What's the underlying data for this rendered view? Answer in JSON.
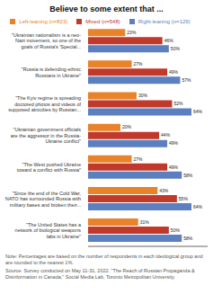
{
  "chart_data": {
    "type": "bar",
    "title": "Believe to some extent that ...",
    "orientation": "horizontal",
    "categories": [
      "\"Ukrainian nationalism is a neo-\nNazi movement, so one of the\ngoals of Russia's 'Special...",
      "\"Russia is defending ethnic\nRussians in Ukraine\"",
      "\"The Kyiv regime is spreading\ndoctored photos and videos of\nsupposed atrocities by Russian...",
      "\"Ukrainian government officials\nare the aggressor in the Russia-\nUkraine conflict\"",
      "\"The West pushed Ukraine\ntoward a conflict with Russia\"",
      "\"Since the end of the Cold War,\nNATO has surrounded Russia with\nmilitary bases and broken their...",
      "\"The United States has a\nnetwork of biological weapons\nlabs in Ukraine\""
    ],
    "series": [
      {
        "name": "Left-leaning (n=823)",
        "color": "#E8832A",
        "values": [
          23,
          27,
          30,
          20,
          27,
          43,
          31
        ],
        "value_labels": [
          "23%",
          "27%",
          "30%",
          "20%",
          "27%",
          "43%",
          "31%"
        ]
      },
      {
        "name": "Mixed (n=548)",
        "color": "#C0392B",
        "values": [
          46,
          49,
          52,
          44,
          49,
          55,
          50
        ],
        "value_labels": [
          "46%",
          "49%",
          "52%",
          "44%",
          "49%",
          "55%",
          "50%"
        ]
      },
      {
        "name": "Right-leaning (n=129)",
        "color": "#5B7FBF",
        "values": [
          50,
          57,
          64,
          49,
          58,
          64,
          58
        ],
        "value_labels": [
          "50%",
          "57%",
          "64%",
          "49%",
          "58%",
          "64%",
          "58%"
        ]
      }
    ],
    "xlim": [
      0,
      74
    ],
    "data_labels": true,
    "tick_labels": "y",
    "legend": "top",
    "annotations": [
      "Note: Percentages are based on the number of respondents in each ideological group and are rounded to the nearest 1%.",
      "Source: Survey conducted on May 11-31, 2022. \"The Reach of Russian Propaganda & Disinformation in Canada,\" Social Media Lab, Toronto Metropolitan University."
    ]
  }
}
